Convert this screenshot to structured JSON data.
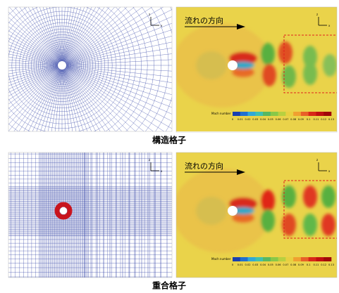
{
  "panels": [
    {
      "caption": "構造格子",
      "mesh_axes": [
        "z",
        "x"
      ],
      "flow": {
        "label": "流れの方向",
        "axes": [
          "z",
          "x"
        ],
        "colorbar": {
          "title": "Mach number",
          "ticks": [
            0,
            0.01,
            0.02,
            0.03,
            0.04,
            0.05,
            0.06,
            0.07,
            0.08,
            0.09,
            0.1,
            0.11,
            0.12,
            0.13
          ]
        }
      }
    },
    {
      "caption": "重合格子",
      "mesh_axes": [
        "z",
        "x"
      ],
      "flow": {
        "label": "流れの方向",
        "axes": [
          "z",
          "x"
        ],
        "colorbar": {
          "title": "Mach number",
          "ticks": [
            0,
            0.01,
            0.02,
            0.03,
            0.04,
            0.05,
            0.06,
            0.07,
            0.08,
            0.09,
            0.1,
            0.11,
            0.12,
            0.13
          ]
        }
      }
    }
  ]
}
